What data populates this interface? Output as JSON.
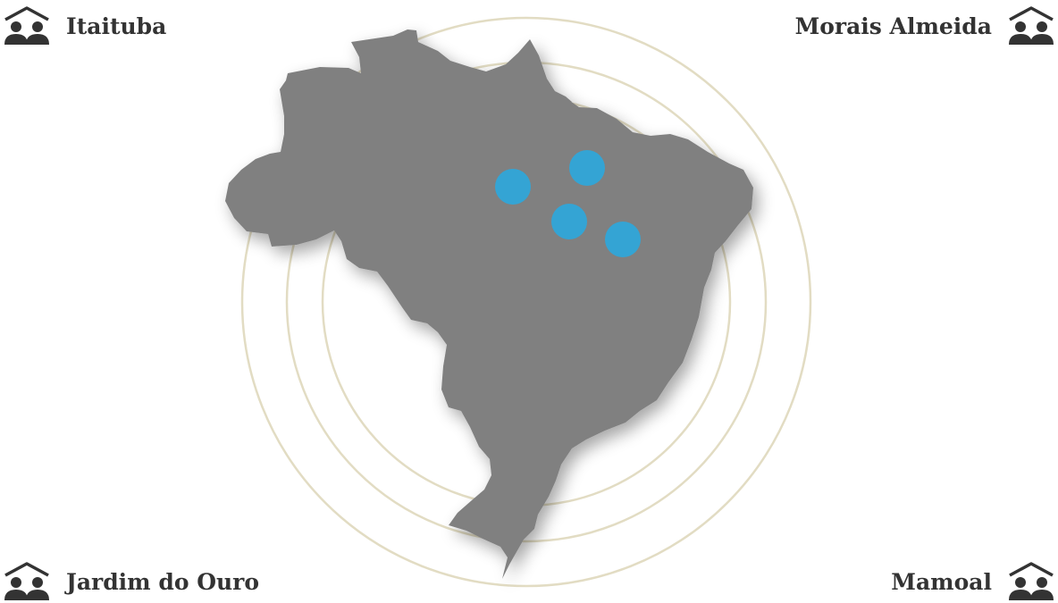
{
  "locations": [
    {
      "id": "itaituba",
      "name": "Itaituba"
    },
    {
      "id": "morais-almeida",
      "name": "Morais Almeida"
    },
    {
      "id": "jardim-do-ouro",
      "name": "Jardim do Ouro"
    },
    {
      "id": "mamoal",
      "name": "Mamoal"
    }
  ],
  "icons": {
    "community": "community-icon"
  },
  "colors": {
    "land": "#808080",
    "marker": "#34a4d4",
    "rings": "#e2dcc3",
    "text": "#333333",
    "icon": "#333333",
    "background": "#ffffff"
  }
}
